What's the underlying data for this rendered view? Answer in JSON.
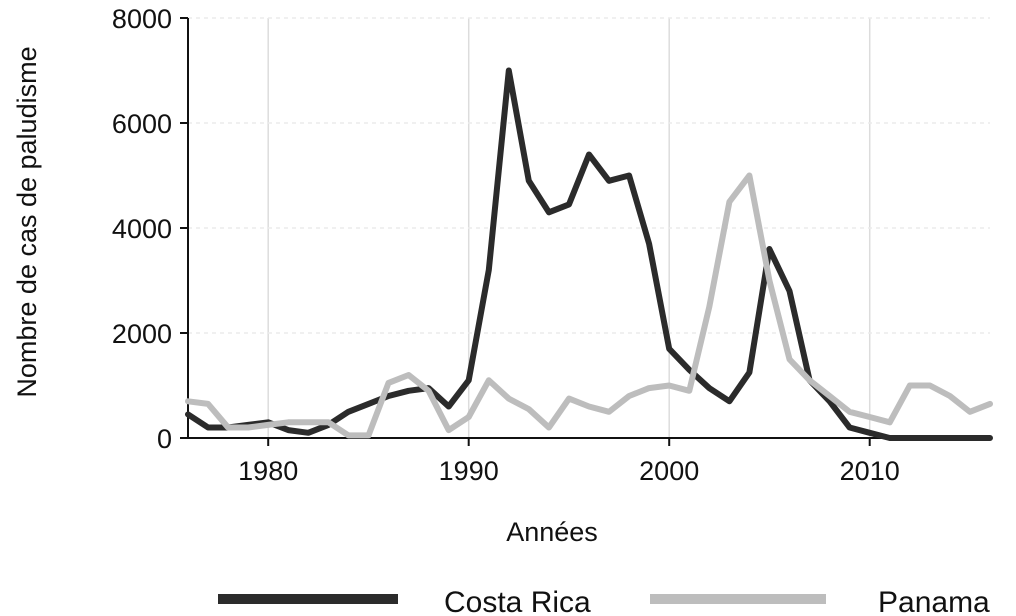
{
  "chart_data": {
    "type": "line",
    "title": "",
    "xlabel": "Années",
    "ylabel": "Nombre de cas de paludisme",
    "xlim": [
      1976,
      2016
    ],
    "ylim": [
      0,
      8000
    ],
    "x_ticks": [
      "1980",
      "1990",
      "2000",
      "2010"
    ],
    "y_ticks": [
      "0",
      "2000",
      "4000",
      "6000",
      "8000"
    ],
    "grid": "vertical",
    "legend_position": "bottom",
    "x": [
      1976,
      1977,
      1978,
      1979,
      1980,
      1981,
      1982,
      1983,
      1984,
      1985,
      1986,
      1987,
      1988,
      1989,
      1990,
      1991,
      1992,
      1993,
      1994,
      1995,
      1996,
      1997,
      1998,
      1999,
      2000,
      2001,
      2002,
      2003,
      2004,
      2005,
      2006,
      2007,
      2008,
      2009,
      2010,
      2011,
      2012,
      2013,
      2014,
      2015,
      2016
    ],
    "series": [
      {
        "name": "Costa Rica",
        "color": "#2b2b2b",
        "values": [
          450,
          200,
          200,
          250,
          300,
          150,
          100,
          250,
          500,
          650,
          800,
          900,
          950,
          600,
          1100,
          3200,
          7000,
          4900,
          4300,
          4450,
          5400,
          4900,
          5000,
          3700,
          1700,
          1300,
          950,
          700,
          1250,
          3600,
          2800,
          1100,
          700,
          200,
          100,
          0,
          0,
          0,
          0,
          0,
          0
        ]
      },
      {
        "name": "Panama",
        "color": "#bdbdbd",
        "values": [
          700,
          650,
          200,
          200,
          250,
          300,
          300,
          300,
          50,
          50,
          1050,
          1200,
          900,
          150,
          400,
          1100,
          750,
          550,
          200,
          750,
          600,
          500,
          800,
          950,
          1000,
          900,
          2500,
          4500,
          5000,
          3000,
          1500,
          1100,
          800,
          500,
          400,
          300,
          1000,
          1000,
          800,
          500,
          650
        ]
      }
    ]
  }
}
